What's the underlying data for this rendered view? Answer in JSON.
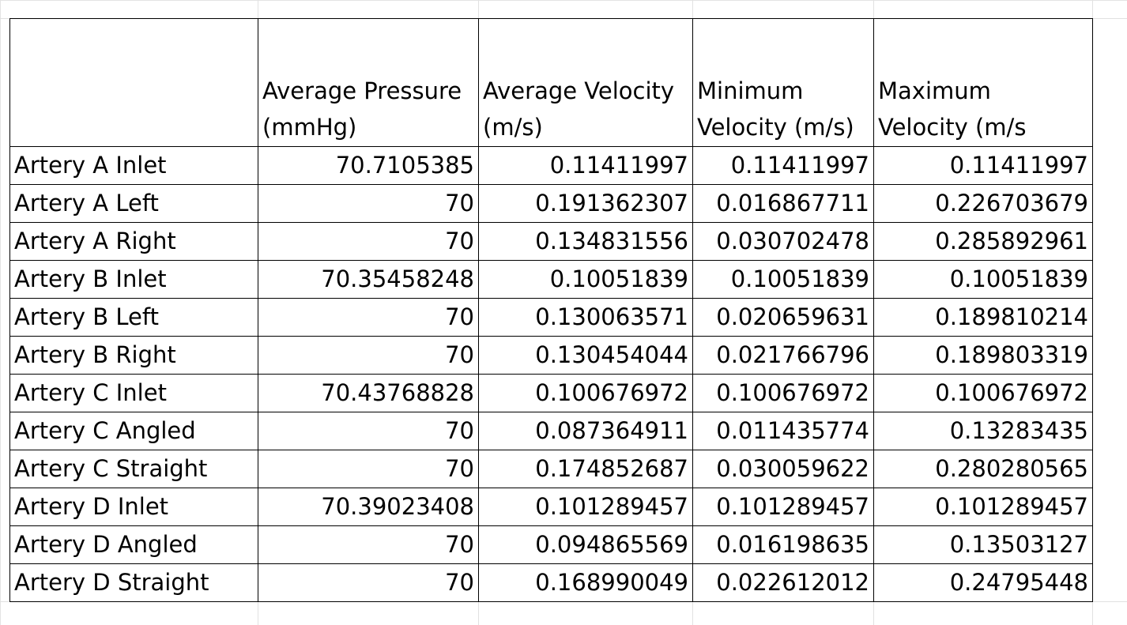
{
  "table": {
    "headers": [
      {
        "line1": "",
        "line2": ""
      },
      {
        "line1": "Average Pressure",
        "line2": "(mmHg)"
      },
      {
        "line1": "Average Velocity",
        "line2": "(m/s)"
      },
      {
        "line1": "Minimum",
        "line2": "Velocity (m/s)"
      },
      {
        "line1": "Maximum",
        "line2": "Velocity (m/s"
      }
    ],
    "rows": [
      {
        "label": "Artery A Inlet",
        "pressure": "70.7105385",
        "avg_velocity": "0.11411997",
        "min_velocity": "0.11411997",
        "max_velocity": "0.11411997"
      },
      {
        "label": "Artery A Left",
        "pressure": "70",
        "avg_velocity": "0.191362307",
        "min_velocity": "0.016867711",
        "max_velocity": "0.226703679"
      },
      {
        "label": "Artery A Right",
        "pressure": "70",
        "avg_velocity": "0.134831556",
        "min_velocity": "0.030702478",
        "max_velocity": "0.285892961"
      },
      {
        "label": "Artery B Inlet",
        "pressure": "70.35458248",
        "avg_velocity": "0.10051839",
        "min_velocity": "0.10051839",
        "max_velocity": "0.10051839"
      },
      {
        "label": "Artery B Left",
        "pressure": "70",
        "avg_velocity": "0.130063571",
        "min_velocity": "0.020659631",
        "max_velocity": "0.189810214"
      },
      {
        "label": "Artery B Right",
        "pressure": "70",
        "avg_velocity": "0.130454044",
        "min_velocity": "0.021766796",
        "max_velocity": "0.189803319"
      },
      {
        "label": "Artery C Inlet",
        "pressure": "70.43768828",
        "avg_velocity": "0.100676972",
        "min_velocity": "0.100676972",
        "max_velocity": "0.100676972"
      },
      {
        "label": "Artery C Angled",
        "pressure": "70",
        "avg_velocity": "0.087364911",
        "min_velocity": "0.011435774",
        "max_velocity": "0.13283435"
      },
      {
        "label": "Artery C Straight",
        "pressure": "70",
        "avg_velocity": "0.174852687",
        "min_velocity": "0.030059622",
        "max_velocity": "0.280280565"
      },
      {
        "label": "Artery D Inlet",
        "pressure": "70.39023408",
        "avg_velocity": "0.101289457",
        "min_velocity": "0.101289457",
        "max_velocity": "0.101289457"
      },
      {
        "label": "Artery D Angled",
        "pressure": "70",
        "avg_velocity": "0.094865569",
        "min_velocity": "0.016198635",
        "max_velocity": "0.13503127"
      },
      {
        "label": "Artery D Straight",
        "pressure": "70",
        "avg_velocity": "0.168990049",
        "min_velocity": "0.022612012",
        "max_velocity": "0.24795448"
      }
    ]
  }
}
